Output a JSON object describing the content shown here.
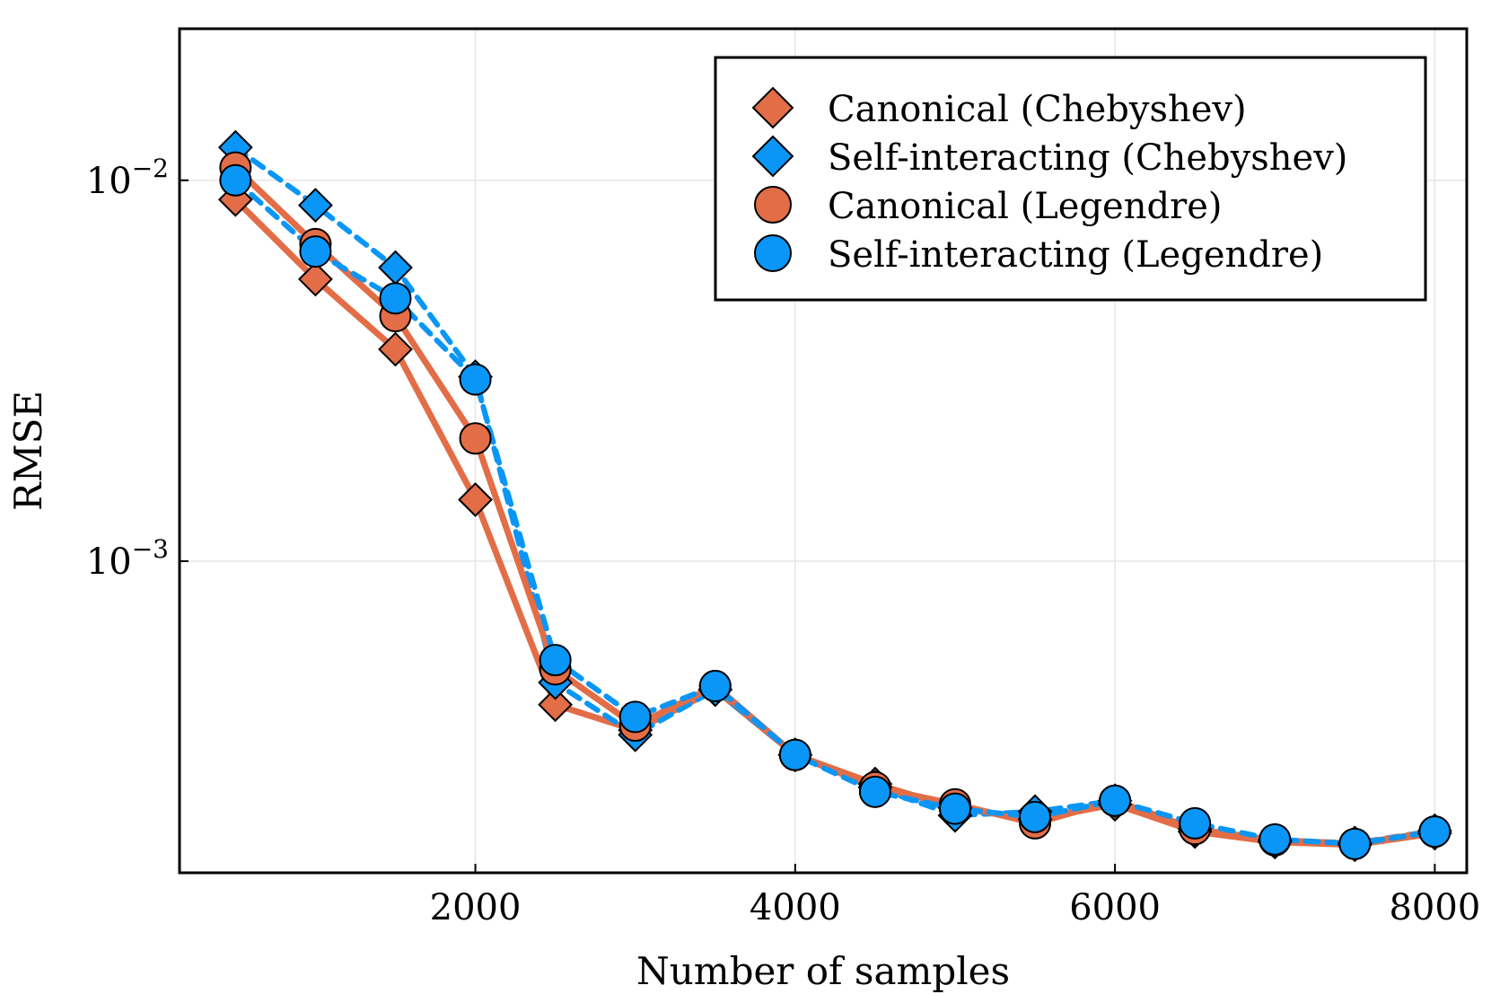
{
  "chart_data": {
    "type": "line",
    "xlabel": "Number of samples",
    "ylabel": "RMSE",
    "yscale": "log",
    "xlim": [
      150,
      8200
    ],
    "ylim": [
      0.000152,
      0.025
    ],
    "xticks": [
      2000,
      4000,
      6000,
      8000
    ],
    "xtick_labels": [
      "2000",
      "4000",
      "6000",
      "8000"
    ],
    "yticks": [
      0.001,
      0.01
    ],
    "ytick_labels": [
      {
        "base": "10",
        "exp": "−3"
      },
      {
        "base": "10",
        "exp": "−2"
      }
    ],
    "grid": true,
    "legend_position": "top-right",
    "x": [
      500,
      1000,
      1500,
      2000,
      2500,
      3000,
      3500,
      4000,
      4500,
      5000,
      5500,
      6000,
      6500,
      7000,
      7500,
      8000
    ],
    "series": [
      {
        "name": "Canonical (Chebyshev)",
        "color": "#e26d47",
        "marker": "diamond",
        "line": "solid",
        "values": [
          0.0089,
          0.0055,
          0.0036,
          0.00145,
          0.00042,
          0.00036,
          0.00046,
          0.00031,
          0.00026,
          0.000225,
          0.00021,
          0.00023,
          0.000195,
          0.000183,
          0.00018,
          0.000193
        ]
      },
      {
        "name": "Self-interacting (Chebyshev)",
        "color": "#0a96f7",
        "marker": "diamond",
        "line": "dashed",
        "values": [
          0.0122,
          0.0086,
          0.0059,
          0.00305,
          0.00048,
          0.00035,
          0.00046,
          0.00031,
          0.000255,
          0.000215,
          0.00022,
          0.000235,
          0.000198,
          0.000185,
          0.000182,
          0.000196
        ]
      },
      {
        "name": "Canonical (Legendre)",
        "color": "#e26d47",
        "marker": "circle",
        "line": "solid",
        "values": [
          0.0108,
          0.0068,
          0.0044,
          0.0021,
          0.00052,
          0.00037,
          0.00047,
          0.00031,
          0.000255,
          0.00023,
          0.000205,
          0.000235,
          0.000198,
          0.000185,
          0.000181,
          0.000195
        ]
      },
      {
        "name": "Self-interacting (Legendre)",
        "color": "#0a96f7",
        "marker": "circle",
        "line": "dashed",
        "values": [
          0.01,
          0.0065,
          0.0049,
          0.003,
          0.00055,
          0.00039,
          0.00047,
          0.00031,
          0.000248,
          0.000224,
          0.000213,
          0.000235,
          0.000205,
          0.000186,
          0.000181,
          0.000195
        ]
      }
    ]
  }
}
